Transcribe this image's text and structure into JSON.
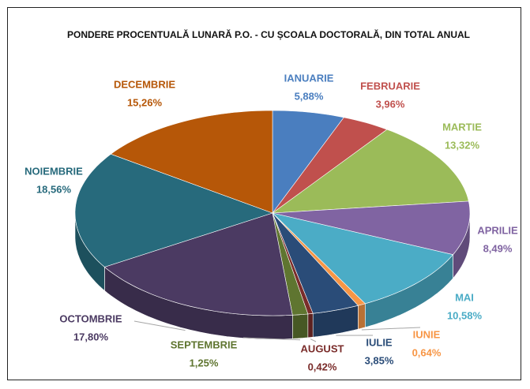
{
  "chart_data": {
    "type": "pie3d",
    "title": "PONDERE PROCENTUALĂ LUNARĂ P.O. - CU ȘCOALA DOCTORALĂ,  DIN TOTAL ANUAL",
    "categories": [
      "IANUARIE",
      "FEBRUARIE",
      "MARTIE",
      "APRILIE",
      "MAI",
      "IUNIE",
      "IULIE",
      "AUGUST",
      "SEPTEMBRIE",
      "OCTOMBRIE",
      "NOIEMBRIE",
      "DECEMBRIE"
    ],
    "values": [
      5.88,
      3.96,
      13.32,
      8.49,
      10.58,
      0.64,
      3.85,
      0.42,
      1.25,
      17.8,
      18.56,
      15.26
    ],
    "value_labels": [
      "5,88%",
      "3,96%",
      "13,32%",
      "8,49%",
      "10,58%",
      "0,64%",
      "3,85%",
      "0,42%",
      "1,25%",
      "17,80%",
      "18,56%",
      "15,26%"
    ],
    "colors": [
      "#4a7ebf",
      "#c0504d",
      "#9bbb59",
      "#8064a2",
      "#4bacc6",
      "#f79646",
      "#2a4c78",
      "#7a2c2a",
      "#5f7530",
      "#4b3a62",
      "#276a7c",
      "#b65708"
    ]
  }
}
